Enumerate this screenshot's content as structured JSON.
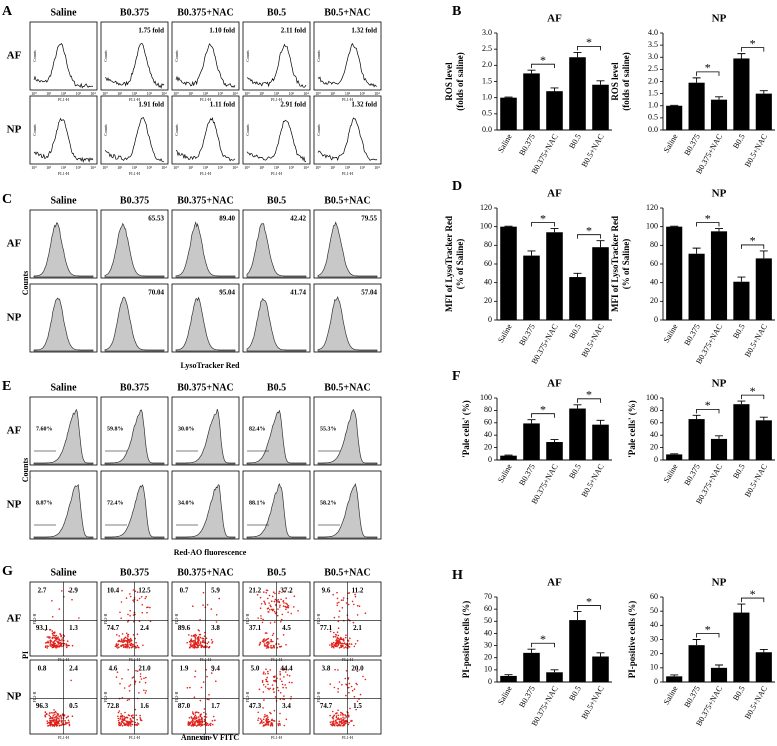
{
  "flow_panels": [
    {
      "letter": "A",
      "columns": [
        "Saline",
        "B0.375",
        "B0.375+NAC",
        "B0.5",
        "B0.5+NAC"
      ],
      "rows": [
        "AF",
        "NP"
      ],
      "labels": [
        [
          null,
          "1.75 fold",
          "1.10 fold",
          "2.11 fold",
          "1.32 fold"
        ],
        [
          null,
          "1.91 fold",
          "1.11 fold",
          "2.91 fold",
          "1.32 fold"
        ]
      ],
      "cell_ylabel": "Counts",
      "cell_xlabel": "FL1-H",
      "cell_xticks": [
        "10⁰",
        "10¹",
        "10²",
        "10³",
        "10⁴"
      ]
    },
    {
      "letter": "C",
      "columns": [
        "Saline",
        "B0.375",
        "B0.375+NAC",
        "B0.5",
        "B0.5+NAC"
      ],
      "rows": [
        "AF",
        "NP"
      ],
      "labels": [
        [
          null,
          "65.53",
          "89.40",
          "42.42",
          "79.55"
        ],
        [
          null,
          "70.04",
          "95.04",
          "41.74",
          "57.04"
        ]
      ],
      "ylabel": "Counts",
      "xlabel": "LysoTracker Red"
    },
    {
      "letter": "E",
      "columns": [
        "Saline",
        "B0.375",
        "B0.375+NAC",
        "B0.5",
        "B0.5+NAC"
      ],
      "rows": [
        "AF",
        "NP"
      ],
      "labels": [
        [
          "7.60%",
          "59.8%",
          "30.0%",
          "82.4%",
          "55.3%"
        ],
        [
          "8.87%",
          "72.4%",
          "34.0%",
          "88.1%",
          "58.2%"
        ]
      ],
      "ylabel": "Counts",
      "xlabel": "Red-AO fluorescence"
    },
    {
      "letter": "G",
      "columns": [
        "Saline",
        "B0.375",
        "B0.375+NAC",
        "B0.5",
        "B0.5+NAC"
      ],
      "rows": [
        "AF",
        "NP"
      ],
      "quadrants": [
        [
          [
            "2.7",
            "2.9",
            "93.1",
            "1.3"
          ],
          [
            "10.4",
            "12.5",
            "74.7",
            "2.4"
          ],
          [
            "0.7",
            "5.9",
            "89.6",
            "3.8"
          ],
          [
            "21.2",
            "37.2",
            "37.1",
            "4.5"
          ],
          [
            "9.6",
            "11.2",
            "77.1",
            "2.1"
          ]
        ],
        [
          [
            "0.8",
            "2.4",
            "96.3",
            "0.5"
          ],
          [
            "4.6",
            "21.0",
            "72.8",
            "1.6"
          ],
          [
            "1.9",
            "9.4",
            "87.0",
            "1.7"
          ],
          [
            "5.0",
            "44.4",
            "47.3",
            "3.4"
          ],
          [
            "3.8",
            "20.0",
            "74.7",
            "1.5"
          ]
        ]
      ],
      "cell_ylabel": "FL2-H",
      "cell_xlabel": "FL1-H",
      "ylabel": "PI",
      "xlabel": "Annexin-V FITC"
    }
  ],
  "chart_data": [
    {
      "type": "bar",
      "letter": "B",
      "title": "AF",
      "ylabel": [
        "ROS level",
        "(folds of saline)"
      ],
      "color": "#000000",
      "categories": [
        "Saline",
        "B0.375",
        "B0.375+NAC",
        "B0.5",
        "B0.5+NAC"
      ],
      "values": [
        1.0,
        1.75,
        1.2,
        2.25,
        1.4
      ],
      "errors": [
        0.02,
        0.1,
        0.1,
        0.15,
        0.12
      ],
      "ylim": [
        0,
        3
      ],
      "yticks": [
        {
          "value": 0,
          "label": "0.0"
        },
        0.5,
        {
          "value": 1,
          "label": "1.0"
        },
        1.5,
        {
          "value": 2,
          "label": "2.0"
        },
        2.5,
        {
          "value": 3,
          "label": "3.0"
        }
      ],
      "brackets": [
        {
          "between": [
            "B0.375",
            "B0.375+NAC"
          ],
          "label": "*"
        },
        {
          "between": [
            "B0.5",
            "B0.5+NAC"
          ],
          "label": "*"
        }
      ]
    },
    {
      "type": "bar",
      "title": "NP",
      "ylabel": [
        "ROS level",
        "(folds of saline)"
      ],
      "color": "#000000",
      "categories": [
        "Saline",
        "B0.375",
        "B0.375+NAC",
        "B0.5",
        "B0.5+NAC"
      ],
      "values": [
        1.0,
        1.95,
        1.25,
        2.95,
        1.5
      ],
      "errors": [
        0.02,
        0.2,
        0.12,
        0.2,
        0.12
      ],
      "ylim": [
        0,
        4
      ],
      "yticks": [
        {
          "value": 0,
          "label": "0.0"
        },
        0.5,
        {
          "value": 1,
          "label": "1.0"
        },
        1.5,
        {
          "value": 2,
          "label": "2.0"
        },
        2.5,
        {
          "value": 3,
          "label": "3.0"
        },
        3.5,
        {
          "value": 4,
          "label": "4.0"
        }
      ],
      "brackets": [
        {
          "between": [
            "B0.375",
            "B0.375+NAC"
          ],
          "label": "*"
        },
        {
          "between": [
            "B0.5",
            "B0.5+NAC"
          ],
          "label": "*"
        }
      ]
    },
    {
      "type": "bar",
      "letter": "D",
      "title": "AF",
      "ylabel": [
        "MFI of LysoTracker Red",
        "(% of Saline)"
      ],
      "color": "#000000",
      "categories": [
        "Saline",
        "B0.375",
        "B0.375+NAC",
        "B0.5",
        "B0.5+NAC"
      ],
      "values": [
        100,
        69,
        94,
        46,
        78
      ],
      "errors": [
        0.5,
        5,
        4,
        4,
        7
      ],
      "ylim": [
        0,
        120
      ],
      "yticks": [
        0,
        20,
        40,
        60,
        80,
        100,
        120
      ],
      "brackets": [
        {
          "between": [
            "B0.375",
            "B0.375+NAC"
          ],
          "label": "*"
        },
        {
          "between": [
            "B0.5",
            "B0.5+NAC"
          ],
          "label": "*"
        }
      ]
    },
    {
      "type": "bar",
      "title": "NP",
      "ylabel": [
        "MFI of LysoTracker Red",
        "(% of Saline)"
      ],
      "color": "#000000",
      "categories": [
        "Saline",
        "B0.375",
        "B0.375+NAC",
        "B0.5",
        "B0.5+NAC"
      ],
      "values": [
        100,
        71,
        95,
        41,
        66
      ],
      "errors": [
        0.5,
        6,
        3,
        5,
        8
      ],
      "ylim": [
        0,
        120
      ],
      "yticks": [
        0,
        20,
        40,
        60,
        80,
        100,
        120
      ],
      "brackets": [
        {
          "between": [
            "B0.375",
            "B0.375+NAC"
          ],
          "label": "*"
        },
        {
          "between": [
            "B0.5",
            "B0.5+NAC"
          ],
          "label": "*"
        }
      ]
    },
    {
      "type": "bar",
      "letter": "F",
      "title": "AF",
      "ylabel": [
        "'Pale cells' (%)"
      ],
      "color": "#000000",
      "categories": [
        "Saline",
        "B0.375",
        "B0.375+NAC",
        "B0.5",
        "B0.5+NAC"
      ],
      "values": [
        7,
        59,
        29,
        83,
        57
      ],
      "errors": [
        1,
        6,
        4,
        6,
        7
      ],
      "ylim": [
        0,
        100
      ],
      "yticks": [
        0,
        20,
        40,
        60,
        80,
        100
      ],
      "brackets": [
        {
          "between": [
            "B0.375",
            "B0.375+NAC"
          ],
          "label": "*"
        },
        {
          "between": [
            "B0.5",
            "B0.5+NAC"
          ],
          "label": "*"
        }
      ]
    },
    {
      "type": "bar",
      "title": "NP",
      "ylabel": [
        "'Pale cells' (%)"
      ],
      "color": "#000000",
      "categories": [
        "Saline",
        "B0.375",
        "B0.375+NAC",
        "B0.5",
        "B0.5+NAC"
      ],
      "values": [
        9,
        66,
        34,
        90,
        64
      ],
      "errors": [
        1,
        6,
        5,
        5,
        5
      ],
      "ylim": [
        0,
        100
      ],
      "yticks": [
        0,
        20,
        40,
        60,
        80,
        100
      ],
      "brackets": [
        {
          "between": [
            "B0.375",
            "B0.375+NAC"
          ],
          "label": "*"
        },
        {
          "between": [
            "B0.5",
            "B0.5+NAC"
          ],
          "label": "*"
        }
      ]
    },
    {
      "type": "bar",
      "letter": "H",
      "title": "AF",
      "ylabel": [
        "PI-positive cells (%)"
      ],
      "color": "#000000",
      "categories": [
        "Saline",
        "B0.375",
        "B0.375+NAC",
        "B0.5",
        "B0.5+NAC"
      ],
      "values": [
        5,
        24,
        8,
        51,
        21
      ],
      "errors": [
        1,
        3,
        2,
        7,
        3
      ],
      "ylim": [
        0,
        70
      ],
      "yticks": [
        0,
        10,
        20,
        30,
        40,
        50,
        60,
        70
      ],
      "brackets": [
        {
          "between": [
            "B0.375",
            "B0.375+NAC"
          ],
          "label": "*"
        },
        {
          "between": [
            "B0.5",
            "B0.5+NAC"
          ],
          "label": "*"
        }
      ]
    },
    {
      "type": "bar",
      "title": "NP",
      "ylabel": [
        "PI-positive cells (%)"
      ],
      "color": "#000000",
      "categories": [
        "Saline",
        "B0.375",
        "B0.375+NAC",
        "B0.5",
        "B0.5+NAC"
      ],
      "values": [
        4,
        26,
        10,
        49,
        21
      ],
      "errors": [
        1,
        4,
        2,
        6,
        2
      ],
      "ylim": [
        0,
        60
      ],
      "yticks": [
        0,
        10,
        20,
        30,
        40,
        50,
        60
      ],
      "brackets": [
        {
          "between": [
            "B0.375",
            "B0.375+NAC"
          ],
          "label": "*"
        },
        {
          "between": [
            "B0.5",
            "B0.5+NAC"
          ],
          "label": "*"
        }
      ]
    }
  ]
}
